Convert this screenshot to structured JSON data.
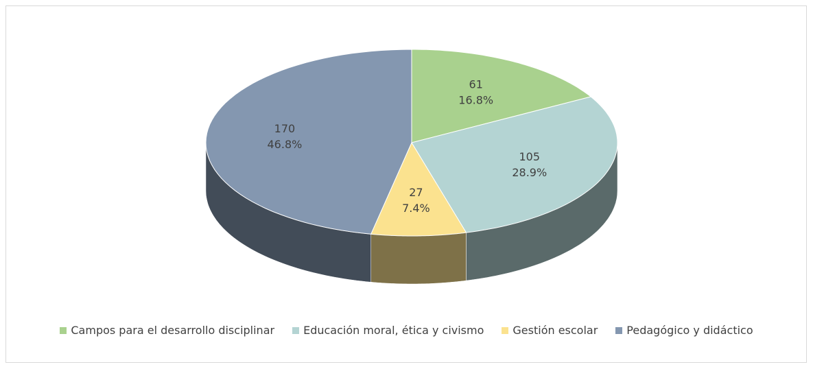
{
  "chart_data": {
    "type": "pie",
    "categories": [
      "Campos para el desarrollo disciplinar",
      "Educación moral, ética y civismo",
      "Gestión escolar",
      "Pedagógico y didáctico"
    ],
    "values": [
      61,
      105,
      27,
      170
    ],
    "percentages": {
      "values": [
        16.8,
        28.9,
        7.4,
        46.8
      ],
      "labels": [
        "16.8%",
        "28.9%",
        "7.4%",
        "46.8%"
      ]
    },
    "colors": [
      "#a9d18e",
      "#b4d4d3",
      "#fbe28f",
      "#8497b0"
    ],
    "legend": "bottom"
  }
}
